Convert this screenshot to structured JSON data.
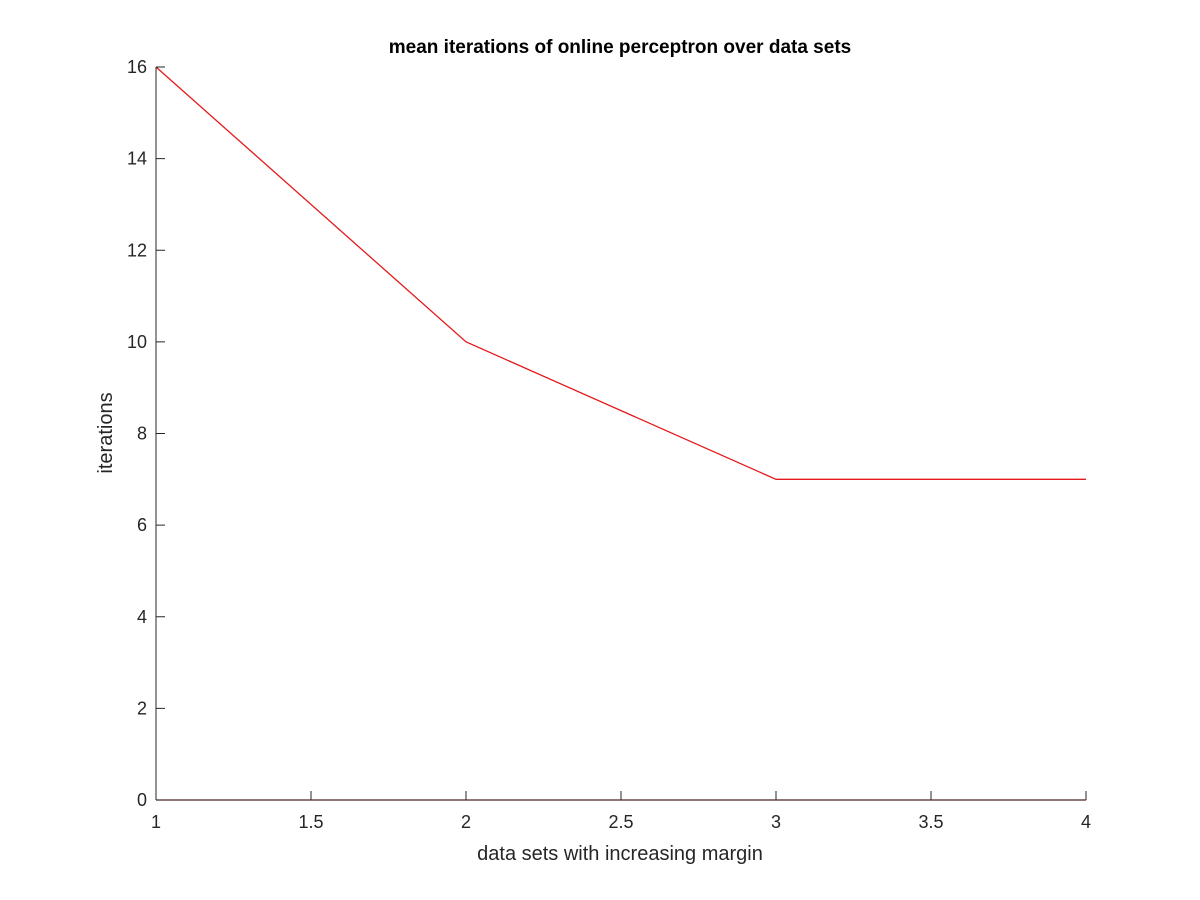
{
  "chart_data": {
    "type": "line",
    "title": "mean iterations of online perceptron over data sets",
    "xlabel": "data sets with increasing margin",
    "ylabel": "iterations",
    "xlim": [
      1,
      4
    ],
    "ylim": [
      0,
      16
    ],
    "xticks": [
      1,
      1.5,
      2,
      2.5,
      3,
      3.5,
      4
    ],
    "xtick_labels": [
      "1",
      "1.5",
      "2",
      "2.5",
      "3",
      "3.5",
      "4"
    ],
    "yticks": [
      0,
      2,
      4,
      6,
      8,
      10,
      12,
      14,
      16
    ],
    "ytick_labels": [
      "0",
      "2",
      "4",
      "6",
      "8",
      "10",
      "12",
      "14",
      "16"
    ],
    "grid": false,
    "legend": "none",
    "series": [
      {
        "color": "#e41a1c",
        "x": [
          1,
          2,
          3,
          4
        ],
        "y": [
          16,
          10,
          7,
          7
        ]
      },
      {
        "color": "#e41a1c",
        "x": [
          1,
          2,
          3,
          4
        ],
        "y": [
          0,
          0,
          0,
          0
        ]
      }
    ]
  }
}
